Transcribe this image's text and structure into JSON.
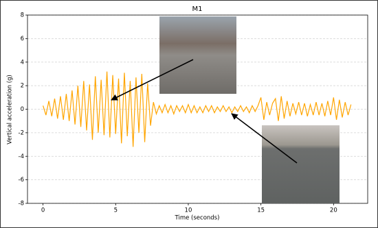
{
  "chart_data": {
    "type": "line",
    "title": "M1",
    "x_label": "Time (seconds)",
    "y_label": "Vertical acceleration (g)",
    "xlim": [
      -1.07,
      22.35
    ],
    "ylim": [
      -8,
      8
    ],
    "xticks": [
      0,
      5,
      10,
      15,
      20
    ],
    "yticks": [
      -8,
      -6,
      -4,
      -2,
      0,
      2,
      4,
      6,
      8
    ],
    "grid": true,
    "series": [
      {
        "name": "M1",
        "color": "#ffa500",
        "x": [
          0.0,
          0.2,
          0.4,
          0.6,
          0.8,
          1.0,
          1.2,
          1.4,
          1.6,
          1.8,
          2.0,
          2.2,
          2.4,
          2.6,
          2.8,
          3.0,
          3.2,
          3.4,
          3.6,
          3.8,
          4.0,
          4.2,
          4.4,
          4.6,
          4.8,
          5.0,
          5.2,
          5.4,
          5.6,
          5.8,
          6.0,
          6.2,
          6.4,
          6.6,
          6.8,
          7.0,
          7.2,
          7.4,
          7.6,
          7.8,
          8.0,
          8.2,
          8.4,
          8.6,
          8.8,
          9.0,
          9.2,
          9.4,
          9.6,
          9.8,
          10.0,
          10.2,
          10.4,
          10.6,
          10.8,
          11.0,
          11.2,
          11.4,
          11.6,
          11.8,
          12.0,
          12.2,
          12.4,
          12.6,
          12.8,
          13.0,
          13.2,
          13.4,
          13.6,
          13.8,
          14.0,
          14.2,
          14.4,
          14.6,
          14.8,
          15.0,
          15.2,
          15.4,
          15.6,
          15.8,
          16.0,
          16.2,
          16.4,
          16.6,
          16.8,
          17.0,
          17.2,
          17.4,
          17.6,
          17.8,
          18.0,
          18.2,
          18.4,
          18.6,
          18.8,
          19.0,
          19.2,
          19.4,
          19.6,
          19.8,
          20.0,
          20.2,
          20.4,
          20.6,
          20.8,
          21.0,
          21.2
        ],
        "values": [
          0.3,
          -0.5,
          0.7,
          -0.6,
          0.9,
          -0.8,
          1.1,
          -0.9,
          1.3,
          -1.0,
          1.6,
          -1.3,
          2.0,
          -1.5,
          2.4,
          -1.8,
          2.1,
          -2.6,
          2.8,
          -2.0,
          2.5,
          -2.2,
          3.2,
          -2.4,
          2.9,
          -2.1,
          2.6,
          -2.9,
          3.1,
          -2.3,
          2.4,
          -3.2,
          2.7,
          -2.0,
          3.0,
          -2.8,
          2.2,
          -1.4,
          0.6,
          -0.4,
          0.3,
          -0.3,
          0.4,
          -0.3,
          0.3,
          -0.4,
          0.3,
          -0.2,
          0.3,
          -0.3,
          0.4,
          -0.3,
          0.3,
          -0.3,
          0.2,
          -0.3,
          0.3,
          -0.2,
          0.3,
          -0.3,
          0.2,
          -0.2,
          0.3,
          -0.2,
          0.2,
          -0.3,
          0.2,
          -0.2,
          0.3,
          -0.2,
          0.2,
          -0.3,
          0.3,
          -0.2,
          0.3,
          1.0,
          -0.9,
          0.6,
          -0.5,
          0.5,
          0.9,
          -1.0,
          1.1,
          -0.8,
          0.7,
          -0.6,
          0.5,
          -0.4,
          0.6,
          -0.5,
          0.5,
          -0.6,
          0.4,
          -0.5,
          0.6,
          -0.5,
          0.5,
          -0.6,
          0.7,
          -0.5,
          1.0,
          -0.9,
          0.8,
          -0.7,
          0.6,
          -0.5,
          0.4
        ]
      }
    ]
  }
}
